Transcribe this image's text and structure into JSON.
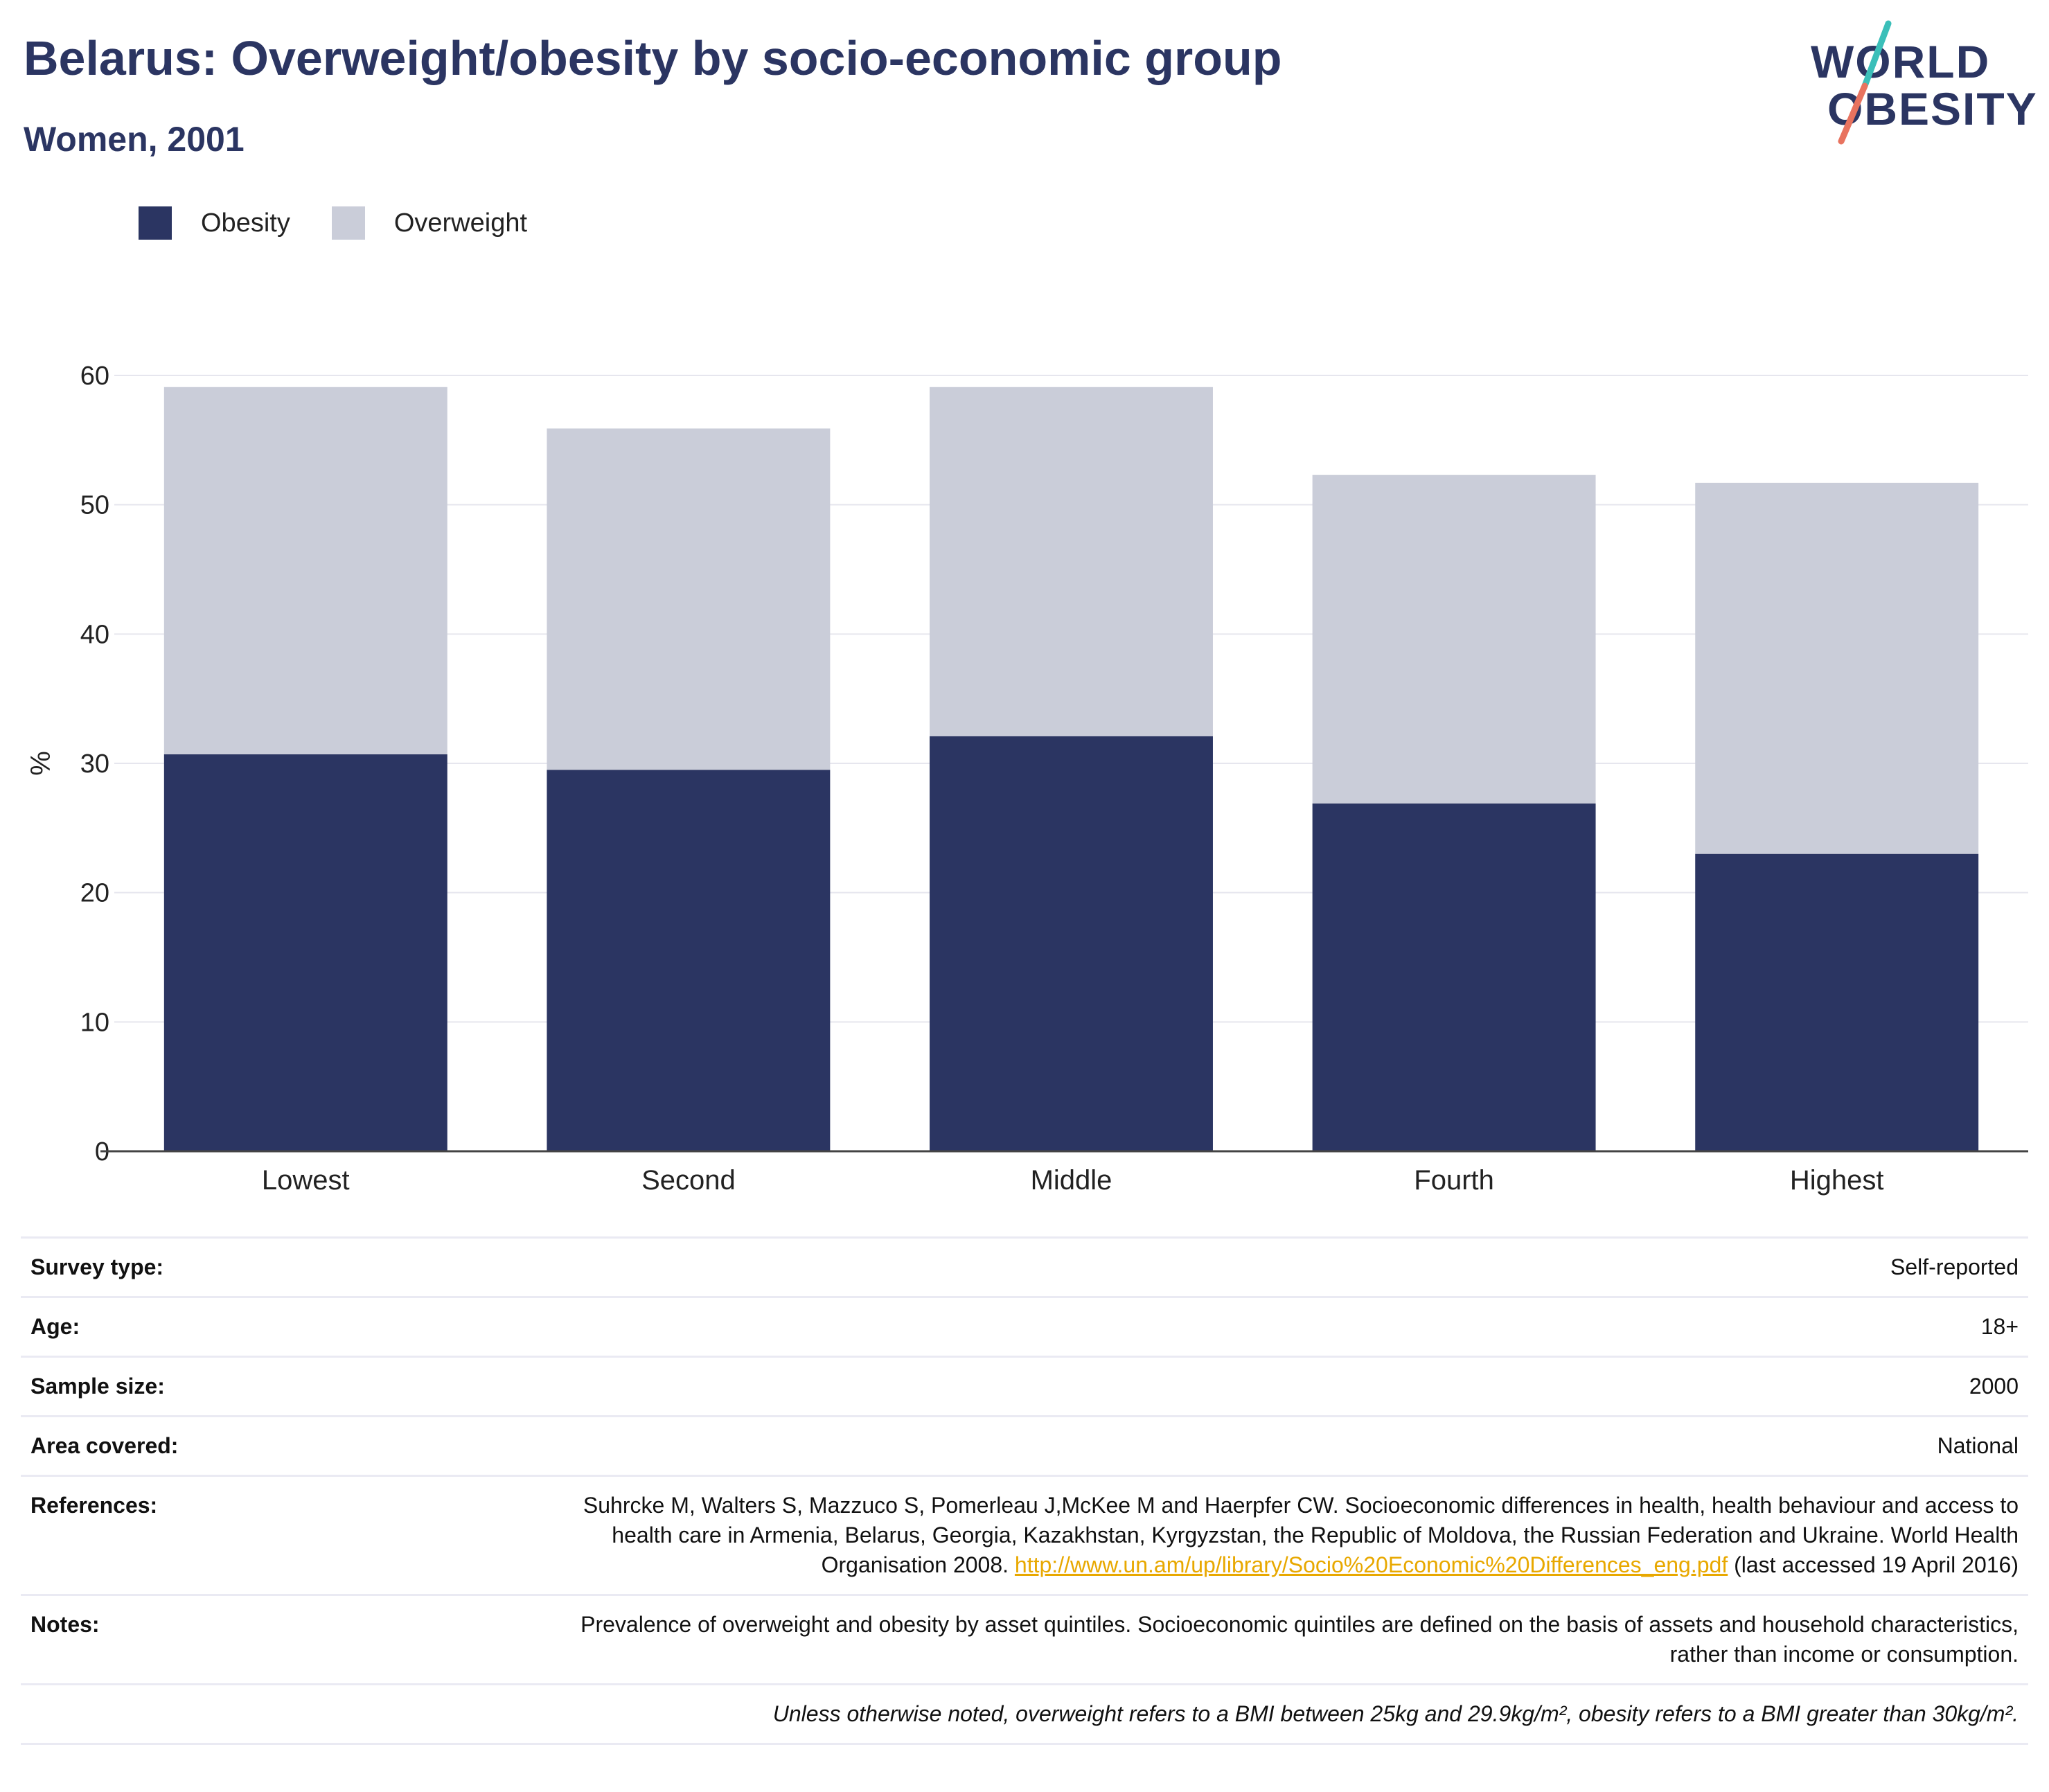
{
  "header": {
    "title": "Belarus: Overweight/obesity by socio-economic group",
    "subtitle": "Women, 2001"
  },
  "logo": {
    "line1": "WORLD",
    "line2": "OBESITY"
  },
  "colors": {
    "obesity": "#2b3562",
    "overweight": "#cacdd9",
    "title": "#2b3562",
    "logo_teal": "#3bbfb9",
    "logo_coral": "#e8735f",
    "link": "#e8a800"
  },
  "legend": [
    {
      "label": "Obesity",
      "color": "#2b3562"
    },
    {
      "label": "Overweight",
      "color": "#cacdd9"
    }
  ],
  "chart_data": {
    "type": "bar",
    "stacked": true,
    "categories": [
      "Lowest",
      "Second",
      "Middle",
      "Fourth",
      "Highest"
    ],
    "series": [
      {
        "name": "Obesity",
        "values": [
          30.7,
          29.5,
          32.1,
          26.9,
          23.0
        ]
      },
      {
        "name": "Overweight",
        "values": [
          28.4,
          26.4,
          27.0,
          25.4,
          28.7
        ]
      }
    ],
    "totals": [
      59.1,
      55.9,
      59.1,
      52.3,
      51.7
    ],
    "ylabel": "%",
    "xlabel": "",
    "ylim": [
      0,
      60
    ],
    "yticks": [
      0,
      10,
      20,
      30,
      40,
      50,
      60
    ],
    "grid": true,
    "legend_position": "top-left"
  },
  "info": {
    "survey_type": {
      "label": "Survey type:",
      "value": "Self-reported"
    },
    "age": {
      "label": "Age:",
      "value": "18+"
    },
    "sample_size": {
      "label": "Sample size:",
      "value": "2000"
    },
    "area_covered": {
      "label": "Area covered:",
      "value": "National"
    },
    "references": {
      "label": "References:",
      "text_before": "Suhrcke M, Walters S, Mazzuco S, Pomerleau J,McKee M and Haerpfer CW. Socioeconomic differences in health, health behaviour and access to health care in Armenia, Belarus, Georgia, Kazakhstan, Kyrgyzstan, the Republic of Moldova, the Russian Federation and Ukraine. World Health Organisation 2008. ",
      "link": "http://www.un.am/up/library/Socio%20Economic%20Differences_eng.pdf",
      "text_after": " (last accessed 19 April 2016)"
    },
    "notes": {
      "label": "Notes:",
      "value": "Prevalence of overweight and obesity by asset quintiles. Socioeconomic quintiles are defined on the basis of assets and household characteristics, rather than income or consumption."
    },
    "footnote": "Unless otherwise noted, overweight refers to a BMI between 25kg and 29.9kg/m², obesity refers to a BMI greater than 30kg/m²."
  }
}
